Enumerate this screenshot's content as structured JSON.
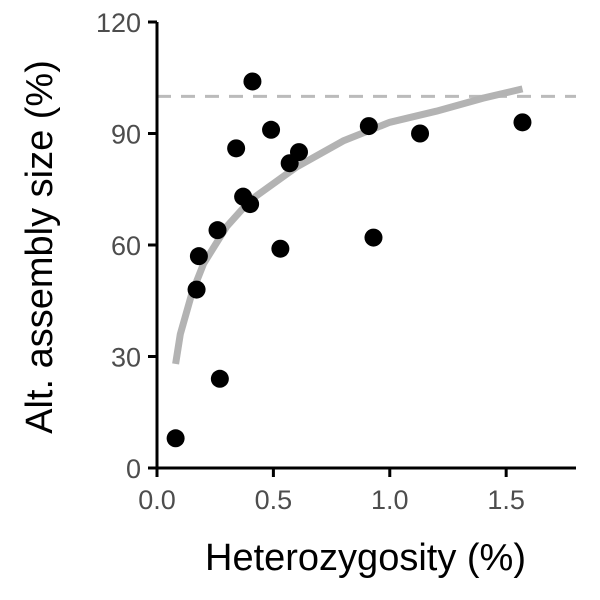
{
  "chart_data": {
    "type": "scatter",
    "title": "",
    "xlabel": "Heterozygosity (%)",
    "ylabel": "Alt. assembly size (%)",
    "xlim": [
      0,
      1.8
    ],
    "ylim": [
      0,
      120
    ],
    "xticks": [
      0.0,
      0.5,
      1.0,
      1.5
    ],
    "xtick_labels": [
      "0.0",
      "0.5",
      "1.0",
      "1.5"
    ],
    "yticks": [
      0,
      30,
      60,
      90,
      120
    ],
    "ytick_labels": [
      "0",
      "30",
      "60",
      "90",
      "120"
    ],
    "grid": false,
    "legend": "none",
    "points": [
      {
        "x": 0.08,
        "y": 8
      },
      {
        "x": 0.17,
        "y": 48
      },
      {
        "x": 0.18,
        "y": 57
      },
      {
        "x": 0.26,
        "y": 64
      },
      {
        "x": 0.27,
        "y": 24
      },
      {
        "x": 0.34,
        "y": 86
      },
      {
        "x": 0.37,
        "y": 73
      },
      {
        "x": 0.4,
        "y": 71
      },
      {
        "x": 0.41,
        "y": 104
      },
      {
        "x": 0.49,
        "y": 91
      },
      {
        "x": 0.53,
        "y": 59
      },
      {
        "x": 0.57,
        "y": 82
      },
      {
        "x": 0.61,
        "y": 85
      },
      {
        "x": 0.91,
        "y": 92
      },
      {
        "x": 0.93,
        "y": 62
      },
      {
        "x": 1.13,
        "y": 90
      },
      {
        "x": 1.57,
        "y": 93
      }
    ],
    "reference_line": {
      "y": 100,
      "style": "dashed",
      "color": "#bbbbbb"
    },
    "fit_curve": {
      "model": "logarithmic",
      "x_range": [
        0.08,
        1.57
      ],
      "points": [
        {
          "x": 0.08,
          "y": 28
        },
        {
          "x": 0.1,
          "y": 36
        },
        {
          "x": 0.15,
          "y": 47
        },
        {
          "x": 0.2,
          "y": 55
        },
        {
          "x": 0.3,
          "y": 65
        },
        {
          "x": 0.4,
          "y": 72
        },
        {
          "x": 0.6,
          "y": 81
        },
        {
          "x": 0.8,
          "y": 88
        },
        {
          "x": 1.0,
          "y": 93
        },
        {
          "x": 1.2,
          "y": 96
        },
        {
          "x": 1.4,
          "y": 99.5
        },
        {
          "x": 1.57,
          "y": 102
        }
      ],
      "color": "#b3b3b3"
    },
    "colors": {
      "points": "#000000",
      "axis": "#000000",
      "tick_label": "#4d4d4d"
    }
  }
}
